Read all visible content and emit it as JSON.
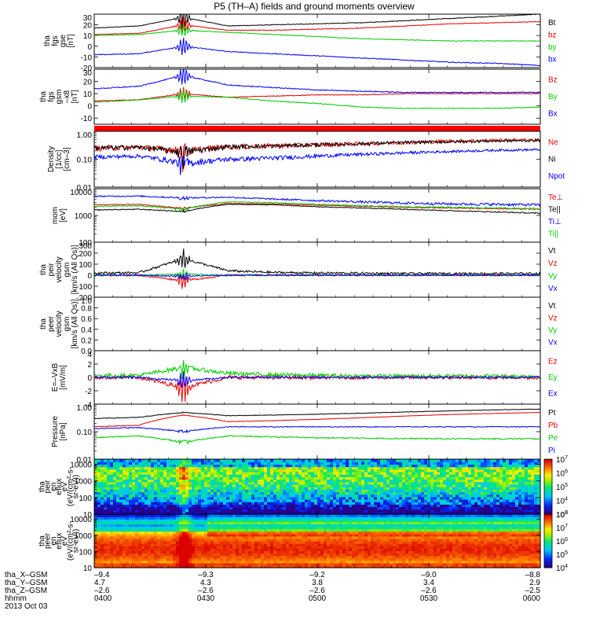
{
  "title": "P5 (TH–A) fields and ground moments overview",
  "colors": {
    "black": "#000000",
    "red": "#e60000",
    "green": "#00cc00",
    "blue": "#0000ff"
  },
  "chart_data": [
    {
      "type": "line",
      "id": "fgs-gse",
      "ylabel": [
        "tha",
        "fgs",
        "gse",
        "[nT]"
      ],
      "ylim": [
        -20,
        30
      ],
      "yscale": "linear",
      "yticks": [
        30,
        20,
        10,
        0,
        -10,
        -20
      ],
      "series": [
        {
          "name": "Bt",
          "color": "black",
          "base": [
            17,
            19,
            27,
            19,
            20,
            21,
            22,
            24,
            26,
            28,
            30
          ],
          "noise": 0.3,
          "spike": 10
        },
        {
          "name": "bz",
          "color": "red",
          "base": [
            11,
            12,
            20,
            15,
            15,
            16,
            17,
            19,
            21,
            22,
            23
          ],
          "noise": 0.3,
          "spike": 8
        },
        {
          "name": "by",
          "color": "green",
          "base": [
            10,
            11,
            15,
            13,
            11,
            9,
            7,
            6,
            5,
            5,
            5
          ],
          "noise": 0.3,
          "spike": 6
        },
        {
          "name": "bx",
          "color": "blue",
          "base": [
            -8,
            -7,
            0,
            -5,
            -7,
            -9,
            -11,
            -13,
            -15,
            -16,
            -18
          ],
          "noise": 0.4,
          "spike": 8
        }
      ]
    },
    {
      "type": "line",
      "id": "fgs-gsm",
      "ylabel": [
        "tha",
        "fgs",
        "gsm",
        "–x8",
        "[nT]"
      ],
      "ylim": [
        -15,
        30
      ],
      "yscale": "linear",
      "yticks": [
        30,
        20,
        10,
        0,
        -10
      ],
      "series": [
        {
          "name": "Bz",
          "color": "red",
          "base": [
            4,
            5,
            10,
            7,
            8,
            9,
            9,
            10,
            10,
            10,
            10
          ],
          "noise": 0.3,
          "spike": 6
        },
        {
          "name": "By",
          "color": "green",
          "base": [
            3,
            5,
            8,
            7,
            4,
            2,
            -1,
            -2,
            -2,
            -2,
            -1
          ],
          "noise": 0.3,
          "spike": 6
        },
        {
          "name": "Bx",
          "color": "blue",
          "base": [
            14,
            16,
            25,
            17,
            15,
            13,
            12,
            11,
            11,
            11,
            11
          ],
          "noise": 0.4,
          "spike": 8
        }
      ]
    },
    {
      "type": "bar-strip",
      "id": "mode-strip",
      "color": "#ff0000"
    },
    {
      "type": "line",
      "id": "density",
      "ylabel": [
        "Density",
        "[1/cc]",
        "[cm–3]"
      ],
      "ylim": [
        0.01,
        1.0
      ],
      "yscale": "log",
      "yticks": [
        1.0,
        0.1,
        0.01
      ],
      "ytick_labels": [
        "1.00",
        "0.10",
        "0.01"
      ],
      "series": [
        {
          "name": "Ne",
          "color": "red",
          "base": [
            0.25,
            0.27,
            0.2,
            0.28,
            0.3,
            0.33,
            0.36,
            0.4,
            0.45,
            0.48,
            0.5
          ],
          "noise": 0.06
        },
        {
          "name": "Ni",
          "color": "black",
          "base": [
            0.25,
            0.27,
            0.18,
            0.28,
            0.3,
            0.33,
            0.36,
            0.4,
            0.42,
            0.45,
            0.47
          ],
          "noise": 0.05
        },
        {
          "name": "Npot",
          "color": "blue",
          "base": [
            0.12,
            0.13,
            0.07,
            0.1,
            0.11,
            0.13,
            0.15,
            0.17,
            0.19,
            0.21,
            0.22
          ],
          "noise": 0.02
        }
      ]
    },
    {
      "type": "line",
      "id": "temperature",
      "ylabel": [
        "mom",
        "[eV]"
      ],
      "ylim": [
        100,
        10000
      ],
      "yscale": "log",
      "yticks": [
        10000,
        1000,
        100
      ],
      "ytick_labels": [
        "10000",
        "1000",
        "100"
      ],
      "series": [
        {
          "name": "Te⊥",
          "color": "red",
          "base": [
            2500,
            2600,
            1800,
            2800,
            2700,
            2400,
            2200,
            2000,
            1900,
            1800,
            1700
          ],
          "noise": 80
        },
        {
          "name": "Te||",
          "color": "black",
          "base": [
            1600,
            1700,
            1400,
            2600,
            2500,
            2100,
            1900,
            1700,
            1500,
            1350,
            1200
          ],
          "noise": 60
        },
        {
          "name": "Ti⊥",
          "color": "blue",
          "base": [
            5200,
            5300,
            4500,
            4800,
            4100,
            3600,
            3200,
            2900,
            2700,
            2600,
            2500
          ],
          "noise": 300
        },
        {
          "name": "Ti||",
          "color": "green",
          "base": [
            2200,
            2300,
            1700,
            3200,
            3000,
            2600,
            2300,
            2100,
            2000,
            1900,
            1800
          ],
          "noise": 120
        }
      ]
    },
    {
      "type": "line",
      "id": "peir-velocity",
      "ylabel": [
        "tha",
        "peir",
        "velocity",
        "gsm",
        "[km/s (All Qs)]"
      ],
      "ylim": [
        -200,
        300
      ],
      "yscale": "linear",
      "yticks": [
        300,
        200,
        100,
        0,
        -100,
        -200
      ],
      "series": [
        {
          "name": "Vt",
          "color": "black",
          "base": [
            20,
            22,
            150,
            40,
            25,
            20,
            18,
            15,
            15,
            15,
            15
          ],
          "noise": 10,
          "spike": 80
        },
        {
          "name": "Vz",
          "color": "red",
          "base": [
            0,
            0,
            -50,
            0,
            0,
            0,
            0,
            0,
            0,
            0,
            0
          ],
          "noise": 8,
          "spike": 60
        },
        {
          "name": "Vy",
          "color": "green",
          "base": [
            0,
            0,
            10,
            0,
            0,
            0,
            0,
            0,
            0,
            0,
            0
          ],
          "noise": 6,
          "spike": 40
        },
        {
          "name": "Vx",
          "color": "blue",
          "base": [
            0,
            0,
            -10,
            0,
            0,
            0,
            0,
            0,
            0,
            0,
            0
          ],
          "noise": 6,
          "spike": 40
        }
      ]
    },
    {
      "type": "line",
      "id": "peer-velocity",
      "ylabel": [
        "tha",
        "peer",
        "velocity",
        "gsm",
        "[km/s (All Qs)]"
      ],
      "ylim": [
        0.0,
        1.0
      ],
      "yscale": "linear",
      "yticks": [
        1.0,
        0.8,
        0.6,
        0.4,
        0.2,
        0.0
      ],
      "ytick_labels": [
        "1.0",
        "0.8",
        "0.6",
        "0.4",
        "0.2",
        "0.0"
      ],
      "series": [
        {
          "name": "Vt",
          "color": "black"
        },
        {
          "name": "Vz",
          "color": "red"
        },
        {
          "name": "Vy",
          "color": "green"
        },
        {
          "name": "Vx",
          "color": "blue"
        }
      ]
    },
    {
      "type": "line",
      "id": "efield",
      "ylabel": [
        "E=–VxB",
        "[mV/m]"
      ],
      "ylim": [
        -4,
        4
      ],
      "yscale": "linear",
      "yticks": [
        4,
        2,
        0,
        -2,
        -4
      ],
      "series": [
        {
          "name": "Ez",
          "color": "red",
          "base": [
            0,
            0,
            -1.5,
            0,
            0,
            0,
            0,
            0,
            0,
            0,
            0
          ],
          "noise": 0.3,
          "spike": 2
        },
        {
          "name": "Ey",
          "color": "green",
          "base": [
            0.3,
            0.3,
            1.5,
            0.6,
            0.4,
            0.3,
            0.2,
            0.2,
            0.2,
            0.2,
            0.2
          ],
          "noise": 0.3,
          "spike": 1
        },
        {
          "name": "Ex",
          "color": "blue",
          "base": [
            0,
            0,
            -0.5,
            0,
            0,
            0,
            0,
            0,
            0,
            0,
            0
          ],
          "noise": 0.15,
          "spike": 1
        }
      ]
    },
    {
      "type": "line",
      "id": "pressure",
      "ylabel": [
        "Pressure",
        "[nPa]"
      ],
      "ylim": [
        0.01,
        1.0
      ],
      "yscale": "log",
      "yticks": [
        1.0,
        0.1,
        0.01
      ],
      "ytick_labels": [
        "1.00",
        "0.10",
        "0.01"
      ],
      "series": [
        {
          "name": "Pt",
          "color": "black",
          "base": [
            0.3,
            0.33,
            0.5,
            0.38,
            0.4,
            0.43,
            0.47,
            0.52,
            0.57,
            0.62,
            0.66
          ],
          "noise": 0.01
        },
        {
          "name": "Pb",
          "color": "red",
          "base": [
            0.15,
            0.17,
            0.4,
            0.23,
            0.25,
            0.28,
            0.32,
            0.37,
            0.42,
            0.46,
            0.5
          ],
          "noise": 0.005
        },
        {
          "name": "Pe",
          "color": "green",
          "base": [
            0.06,
            0.07,
            0.04,
            0.07,
            0.065,
            0.06,
            0.058,
            0.056,
            0.055,
            0.055,
            0.055
          ],
          "noise": 0.003
        },
        {
          "name": "Pi",
          "color": "blue",
          "base": [
            0.13,
            0.14,
            0.1,
            0.15,
            0.15,
            0.15,
            0.15,
            0.15,
            0.15,
            0.15,
            0.15
          ],
          "noise": 0.005
        }
      ]
    },
    {
      "type": "heatmap",
      "id": "peir-spec",
      "ylabel": [
        "tha",
        "peir",
        "en",
        "eflux",
        "eV",
        "(eV/(cm²-s-",
        "sr-eV))"
      ],
      "ylim": [
        10,
        20000
      ],
      "yscale": "log",
      "yticks": [
        10000,
        1000,
        100,
        10
      ],
      "ytick_labels": [
        "10000",
        "1000",
        "100",
        "10"
      ],
      "colorbar": {
        "min_exp": 3,
        "max_exp": 7,
        "tick_exps": [
          7,
          6,
          5,
          4,
          3
        ]
      }
    },
    {
      "type": "heatmap",
      "id": "peer-spec",
      "ylabel": [
        "tha",
        "peer",
        "en",
        "eflux",
        "eV",
        "(eV/(cm²-s-",
        "sr-eV))"
      ],
      "ylim": [
        10,
        20000
      ],
      "yscale": "log",
      "yticks": [
        10000,
        1000,
        100,
        10
      ],
      "ytick_labels": [
        "10000",
        "1000",
        "100",
        "10"
      ],
      "colorbar": {
        "min_exp": 4,
        "max_exp": 8,
        "tick_exps": [
          8,
          7,
          6,
          5,
          4
        ]
      }
    }
  ],
  "time_axis": {
    "range": [
      "0400",
      "0600"
    ],
    "rows": [
      {
        "label": "tha_X–GSM",
        "values": [
          "–9.4",
          "–9.3",
          "–9.2",
          "–9.0",
          "–8.8"
        ]
      },
      {
        "label": "tha_Y–GSM",
        "values": [
          "4.7",
          "4.3",
          "3.8",
          "3.4",
          "2.9"
        ]
      },
      {
        "label": "tha_Z–GSM",
        "values": [
          "–2.6",
          "–2.6",
          "–2.6",
          "–2.6",
          "–2.5"
        ]
      },
      {
        "label": "hhmm",
        "values": [
          "0400",
          "0430",
          "0500",
          "0530",
          "0600"
        ]
      }
    ],
    "date": "2013 Oct 03"
  }
}
